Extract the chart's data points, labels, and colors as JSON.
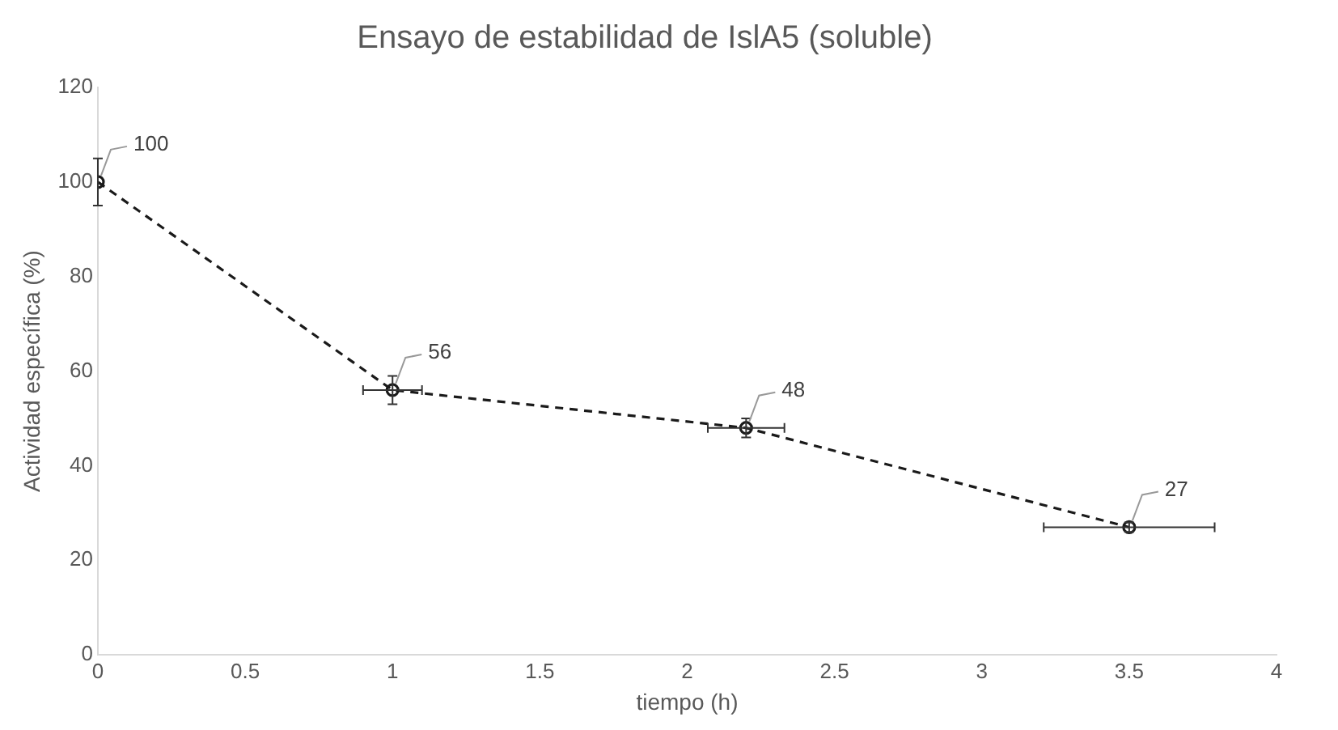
{
  "chart_data": {
    "type": "line",
    "title": "Ensayo de estabilidad de IslA5 (soluble)",
    "xlabel": "tiempo (h)",
    "ylabel": "Actividad específica (%)",
    "series": [
      {
        "color": "#1a1a1a",
        "x": [
          0,
          1,
          2.2,
          3.5
        ],
        "values": [
          100,
          56,
          48,
          27
        ],
        "errors": [
          5,
          3,
          2,
          1
        ],
        "xerrors": [
          null,
          0.1,
          0.13,
          0.29
        ]
      }
    ],
    "xlim": [
      0,
      4
    ],
    "xticks": [
      0,
      0.5,
      1,
      1.5,
      2,
      2.5,
      3,
      3.5,
      4
    ],
    "ylim": [
      0,
      120
    ],
    "yticks": [
      0,
      20,
      40,
      60,
      80,
      100,
      120
    ],
    "grid": false,
    "legend": false,
    "marker": "circle",
    "line_style": "dashed",
    "data_labels": true
  }
}
